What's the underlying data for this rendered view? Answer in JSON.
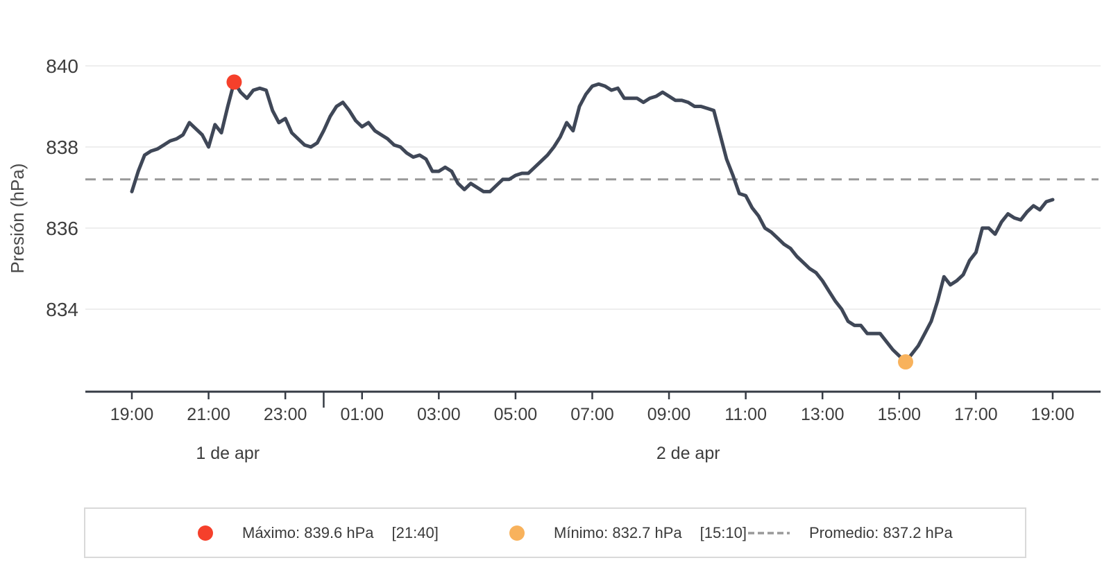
{
  "page": {
    "background": "#ffffff"
  },
  "chart_data": {
    "type": "line",
    "title": "",
    "xlabel": "",
    "ylabel": "Presión (hPa)",
    "y_ticks": [
      840,
      838,
      836,
      834
    ],
    "ylim": [
      832.0,
      840.9
    ],
    "grid": "horizontal",
    "legend_position": "bottom",
    "x_tick_labels": [
      "19:00",
      "21:00",
      "23:00",
      "01:00",
      "03:00",
      "05:00",
      "07:00",
      "09:00",
      "11:00",
      "13:00",
      "15:00",
      "17:00",
      "19:00"
    ],
    "day_labels": [
      "1 de apr",
      "2 de apr"
    ],
    "day_divider_index": 30,
    "series": [
      {
        "name": "Presión",
        "start_time": "19:00",
        "interval_minutes": 10,
        "values": [
          836.9,
          837.4,
          837.8,
          837.9,
          837.95,
          838.05,
          838.15,
          838.2,
          838.3,
          838.6,
          838.45,
          838.3,
          838.0,
          838.55,
          838.35,
          839.0,
          839.6,
          839.35,
          839.2,
          839.4,
          839.45,
          839.4,
          838.9,
          838.6,
          838.7,
          838.35,
          838.2,
          838.05,
          838.0,
          838.1,
          838.4,
          838.75,
          839.0,
          839.1,
          838.9,
          838.65,
          838.5,
          838.6,
          838.4,
          838.3,
          838.2,
          838.05,
          838.0,
          837.85,
          837.75,
          837.8,
          837.7,
          837.4,
          837.4,
          837.5,
          837.4,
          837.1,
          836.95,
          837.1,
          837.0,
          836.9,
          836.9,
          837.05,
          837.2,
          837.2,
          837.3,
          837.35,
          837.35,
          837.5,
          837.65,
          837.8,
          838.0,
          838.25,
          838.6,
          838.4,
          839.0,
          839.3,
          839.5,
          839.55,
          839.5,
          839.4,
          839.45,
          839.2,
          839.2,
          839.2,
          839.1,
          839.2,
          839.25,
          839.35,
          839.25,
          839.15,
          839.15,
          839.1,
          839.0,
          839.0,
          838.95,
          838.9,
          838.3,
          837.7,
          837.3,
          836.85,
          836.8,
          836.5,
          836.3,
          836.0,
          835.9,
          835.75,
          835.6,
          835.5,
          835.3,
          835.15,
          835.0,
          834.9,
          834.7,
          834.45,
          834.2,
          834.0,
          833.7,
          833.6,
          833.6,
          833.4,
          833.4,
          833.4,
          833.2,
          833.0,
          832.85,
          832.7,
          832.9,
          833.1,
          833.4,
          833.7,
          834.2,
          834.8,
          834.6,
          834.7,
          834.85,
          835.2,
          835.4,
          836.0,
          836.0,
          835.85,
          836.15,
          836.35,
          836.25,
          836.2,
          836.4,
          836.55,
          836.45,
          836.65,
          836.7
        ]
      }
    ],
    "average": 837.2,
    "max_point": {
      "value": 839.6,
      "time": "21:40",
      "index": 16
    },
    "min_point": {
      "value": 832.7,
      "time": "15:10",
      "index": 121
    },
    "colors": {
      "line": "#3f4757",
      "max_marker": "#f5402b",
      "min_marker": "#f8b25c",
      "average_line": "#999999",
      "grid": "#e8e8e8",
      "axis": "#363b44",
      "text": "#3d3d3d"
    }
  },
  "legend": {
    "max_label": "Máximo: 839.6 hPa",
    "max_time": "[21:40]",
    "min_label": "Mínimo: 832.7 hPa",
    "min_time": "[15:10]",
    "avg_label": "Promedio: 837.2 hPa"
  }
}
